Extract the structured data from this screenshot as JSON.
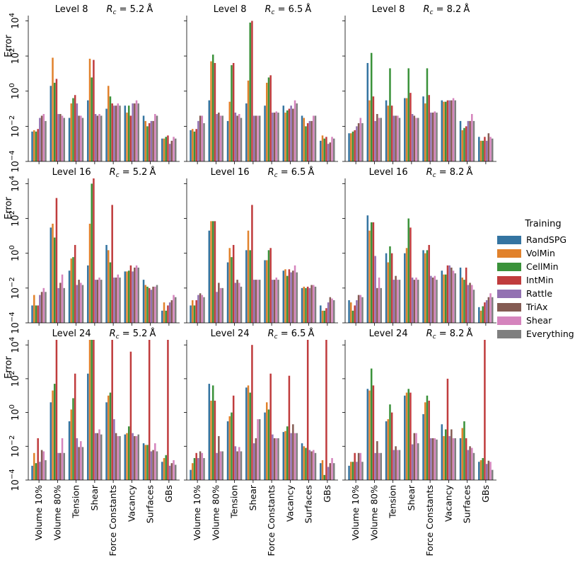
{
  "chart_data": {
    "type": "bar",
    "log_scale": true,
    "ylabel": "Error",
    "ylim": [
      0.0001,
      20000
    ],
    "y_tick_exponents": [
      -4,
      -2,
      0,
      2,
      4
    ],
    "categories": [
      "Volume 10%",
      "Volume 80%",
      "Tension",
      "Shear",
      "Force Constants",
      "Vacancy",
      "Surfaces",
      "GBs"
    ],
    "legend": {
      "title": "Training",
      "entries": [
        {
          "name": "RandSPG",
          "color": "#3474a1"
        },
        {
          "name": "VolMin",
          "color": "#e1822c"
        },
        {
          "name": "CellMin",
          "color": "#3a923a"
        },
        {
          "name": "IntMin",
          "color": "#c03c3d"
        },
        {
          "name": "Rattle",
          "color": "#9371b2"
        },
        {
          "name": "TriAx",
          "color": "#845b53"
        },
        {
          "name": "Shear",
          "color": "#d584bd"
        },
        {
          "name": "Everything",
          "color": "#7f7f7f"
        }
      ]
    },
    "panels": [
      {
        "level_label": "Level 8",
        "rc_value": "5.2",
        "rc_unit": "Å",
        "values": [
          [
            0.005,
            0.006,
            0.005,
            0.007,
            0.03,
            0.04,
            0.05,
            0.02
          ],
          [
            2,
            80,
            3,
            5,
            0.05,
            0.05,
            0.04,
            0.03
          ],
          [
            0.03,
            0.2,
            0.4,
            0.6,
            0.2,
            0.04,
            0.04,
            0.03
          ],
          [
            0.3,
            70,
            6,
            60,
            0.05,
            0.04,
            0.05,
            0.04
          ],
          [
            0.1,
            2,
            0.5,
            0.2,
            0.15,
            0.15,
            0.2,
            0.15
          ],
          [
            0.15,
            0.06,
            0.15,
            0.04,
            0.2,
            0.2,
            0.3,
            0.2
          ],
          [
            0.04,
            0.02,
            0.01,
            0.015,
            0.02,
            0.02,
            0.05,
            0.04
          ],
          [
            0.002,
            0.002,
            0.0025,
            0.003,
            0.001,
            0.0015,
            0.0025,
            0.002
          ]
        ]
      },
      {
        "level_label": "Level 8",
        "rc_value": "6.5",
        "rc_unit": "Å",
        "values": [
          [
            0.006,
            0.007,
            0.005,
            0.007,
            0.02,
            0.04,
            0.04,
            0.015
          ],
          [
            0.3,
            50,
            120,
            40,
            0.05,
            0.06,
            0.04,
            0.04
          ],
          [
            0.02,
            0.25,
            30,
            40,
            0.06,
            0.04,
            0.05,
            0.03
          ],
          [
            0.2,
            4,
            8000,
            10000,
            0.04,
            0.04,
            0.04,
            0.04
          ],
          [
            0.15,
            3,
            6,
            8,
            0.06,
            0.06,
            0.07,
            0.06
          ],
          [
            0.15,
            0.06,
            0.08,
            0.1,
            0.15,
            0.1,
            0.3,
            0.2
          ],
          [
            0.04,
            0.03,
            0.01,
            0.015,
            0.02,
            0.02,
            0.04,
            0.04
          ],
          [
            0.0015,
            0.003,
            0.002,
            0.0025,
            0.001,
            0.0012,
            0.0025,
            0.002
          ]
        ]
      },
      {
        "level_label": "Level 8",
        "rc_value": "8.2",
        "rc_unit": "Å",
        "values": [
          [
            0.004,
            0.004,
            0.005,
            0.006,
            0.01,
            0.015,
            0.03,
            0.015
          ],
          [
            40,
            0.3,
            150,
            0.5,
            0.02,
            0.05,
            0.03,
            0.03
          ],
          [
            0.3,
            0.15,
            20,
            0.15,
            0.04,
            0.04,
            0.04,
            0.03
          ],
          [
            0.4,
            0.4,
            20,
            0.8,
            0.05,
            0.04,
            0.03,
            0.03
          ],
          [
            0.5,
            0.2,
            20,
            0.6,
            0.06,
            0.06,
            0.07,
            0.06
          ],
          [
            0.3,
            0.25,
            0.25,
            0.3,
            0.3,
            0.3,
            0.4,
            0.3
          ],
          [
            0.02,
            0.006,
            0.008,
            0.01,
            0.02,
            0.02,
            0.05,
            0.02
          ],
          [
            0.0025,
            0.0015,
            0.0015,
            0.0025,
            0.0015,
            0.004,
            0.0025,
            0.002
          ]
        ]
      },
      {
        "level_label": "Level 16",
        "rc_value": "5.2",
        "rc_unit": "Å",
        "values": [
          [
            0.001,
            0.004,
            0.001,
            0.001,
            0.004,
            0.006,
            0.01,
            0.006
          ],
          [
            30,
            50,
            8,
            1500,
            0.01,
            0.02,
            0.06,
            0.01
          ],
          [
            0.1,
            0.5,
            0.6,
            3,
            0.015,
            0.03,
            0.02,
            0.015
          ],
          [
            0.2,
            50,
            10000,
            30000,
            0.03,
            0.03,
            0.04,
            0.03
          ],
          [
            3,
            1.5,
            0.3,
            600,
            0.04,
            0.04,
            0.06,
            0.04
          ],
          [
            0.09,
            0.09,
            0.1,
            0.2,
            0.09,
            0.15,
            0.2,
            0.15
          ],
          [
            0.03,
            0.015,
            0.012,
            0.01,
            0.008,
            0.012,
            0.012,
            0.015
          ],
          [
            0.0005,
            0.0015,
            0.0005,
            0.001,
            0.0015,
            0.002,
            0.004,
            0.003
          ]
        ]
      },
      {
        "level_label": "Level 16",
        "rc_value": "6.5",
        "rc_unit": "Å",
        "values": [
          [
            0.001,
            0.002,
            0.001,
            0.002,
            0.004,
            0.005,
            0.004,
            0.003
          ],
          [
            20,
            70,
            70,
            70,
            0.006,
            0.02,
            0.01,
            0.01
          ],
          [
            0.3,
            2,
            0.6,
            3,
            0.02,
            0.03,
            0.02,
            0.012
          ],
          [
            1.5,
            20,
            1.5,
            600,
            0.03,
            0.03,
            0.03,
            0.03
          ],
          [
            0.4,
            0.4,
            1.5,
            2,
            0.03,
            0.03,
            0.04,
            0.03
          ],
          [
            0.1,
            0.12,
            0.05,
            0.12,
            0.08,
            0.1,
            0.2,
            0.08
          ],
          [
            0.01,
            0.012,
            0.01,
            0.012,
            0.01,
            0.015,
            0.015,
            0.012
          ],
          [
            0.001,
            0.0005,
            0.0005,
            0.0007,
            0.0015,
            0.003,
            0.0025,
            0.002
          ]
        ]
      },
      {
        "level_label": "Level 16",
        "rc_value": "8.2",
        "rc_unit": "Å",
        "values": [
          [
            0.002,
            0.0015,
            0.0005,
            0.001,
            0.002,
            0.004,
            0.004,
            0.003
          ],
          [
            150,
            20,
            60,
            60,
            0.7,
            0.01,
            0.04,
            0.01
          ],
          [
            1,
            0.3,
            2.5,
            1,
            0.03,
            0.05,
            0.03,
            0.03
          ],
          [
            1,
            2,
            100,
            30,
            0.04,
            0.03,
            0.04,
            0.03
          ],
          [
            1.5,
            1,
            1.5,
            3,
            0.05,
            0.04,
            0.05,
            0.03
          ],
          [
            0.1,
            0.06,
            0.06,
            0.2,
            0.2,
            0.15,
            0.1,
            0.07
          ],
          [
            0.15,
            0.04,
            0.03,
            0.15,
            0.015,
            0.02,
            0.015,
            0.008
          ],
          [
            0.0008,
            0.0005,
            0.0009,
            0.0015,
            0.002,
            0.003,
            0.005,
            0.003
          ]
        ]
      },
      {
        "level_label": "Level 24",
        "rc_value": "5.2",
        "rc_unit": "Å",
        "values": [
          [
            0.0007,
            0.004,
            0.001,
            0.03,
            0.0012,
            0.006,
            0.005,
            0.0015
          ],
          [
            4,
            20,
            50,
            20000,
            0.004,
            0.004,
            0.03,
            0.004
          ],
          [
            0.3,
            1.5,
            7,
            200,
            0.03,
            0.009,
            0.02,
            0.009
          ],
          [
            200,
            20000,
            20000,
            20000,
            0.06,
            0.06,
            0.1,
            0.05
          ],
          [
            4,
            10,
            15,
            20000,
            0.4,
            0.06,
            0.04,
            0.04
          ],
          [
            0.05,
            0.06,
            0.15,
            4000,
            0.06,
            0.04,
            0.04,
            0.05
          ],
          [
            0.015,
            0.012,
            0.012,
            20000,
            0.005,
            0.006,
            0.015,
            0.005
          ],
          [
            0.0012,
            0.002,
            0.003,
            20000,
            0.0007,
            0.001,
            0.0015,
            0.0008
          ]
        ]
      },
      {
        "level_label": "Level 24",
        "rc_value": "6.5",
        "rc_unit": "Å",
        "values": [
          [
            0.0004,
            0.001,
            0.002,
            0.004,
            0.002,
            0.005,
            0.004,
            0.002
          ],
          [
            50,
            5,
            40,
            5,
            0.004,
            0.04,
            0.005,
            0.005
          ],
          [
            0.3,
            0.6,
            1,
            10,
            0.01,
            0.005,
            0.009,
            0.005
          ],
          [
            30,
            40,
            15,
            10000,
            0.015,
            0.03,
            0.4,
            0.4
          ],
          [
            1,
            4,
            1.5,
            200,
            0.05,
            0.03,
            0.03,
            0.03
          ],
          [
            0.07,
            0.08,
            0.15,
            150,
            0.06,
            0.2,
            0.06,
            0.06
          ],
          [
            0.015,
            0.01,
            0.008,
            20000,
            0.006,
            0.005,
            0.006,
            0.004
          ],
          [
            0.001,
            0.0015,
            0.0002,
            20000,
            0.0006,
            0.001,
            0.002,
            0.001
          ]
        ]
      },
      {
        "level_label": "Level 24",
        "rc_value": "8.2",
        "rc_unit": "Å",
        "values": [
          [
            0.0007,
            0.0012,
            0.0012,
            0.004,
            0.0012,
            0.004,
            0.004,
            0.0012
          ],
          [
            25,
            20,
            400,
            40,
            0.004,
            0.02,
            0.004,
            0.004
          ],
          [
            0.3,
            0.4,
            3,
            1,
            0.006,
            0.01,
            0.006,
            0.006
          ],
          [
            10,
            15,
            25,
            15,
            0.013,
            0.06,
            0.06,
            0.015
          ],
          [
            0.8,
            4,
            10,
            5,
            0.03,
            0.03,
            0.03,
            0.025
          ],
          [
            0.2,
            0.04,
            0.1,
            100,
            0.04,
            0.1,
            0.03,
            0.03
          ],
          [
            0.03,
            0.12,
            0.3,
            0.03,
            0.006,
            0.01,
            0.008,
            0.004
          ],
          [
            0.0012,
            0.0015,
            0.002,
            20000,
            0.0009,
            0.0014,
            0.0012,
            0.0004
          ]
        ]
      }
    ]
  }
}
